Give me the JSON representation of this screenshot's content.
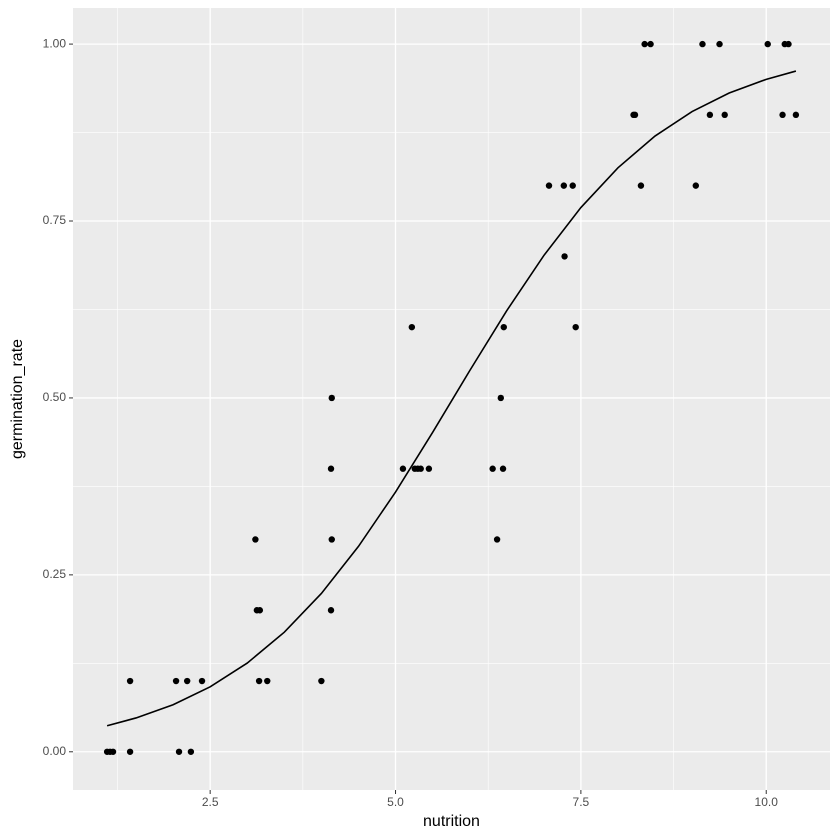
{
  "chart_data": {
    "type": "scatter",
    "x_label": "nutrition",
    "y_label": "germination_rate",
    "xlim": [
      0.65,
      10.86
    ],
    "ylim": [
      -0.054,
      1.051
    ],
    "xticks": [
      {
        "value": 2.5,
        "label": "2.5"
      },
      {
        "value": 5.0,
        "label": "5.0"
      },
      {
        "value": 7.5,
        "label": "7.5"
      },
      {
        "value": 10.0,
        "label": "10.0"
      }
    ],
    "yticks": [
      {
        "value": 0,
        "label": "0.00"
      },
      {
        "value": 0.25,
        "label": "0.25"
      },
      {
        "value": 0.5,
        "label": "0.50"
      },
      {
        "value": 0.75,
        "label": "0.75"
      },
      {
        "value": 1,
        "label": "1.00"
      }
    ],
    "grid": true,
    "series": [
      {
        "type": "scatter",
        "color": "#000000",
        "x": [
          1.11,
          1.15,
          1.19,
          1.42,
          1.42,
          2.04,
          2.08,
          2.19,
          2.24,
          2.39,
          3.11,
          3.13,
          3.17,
          3.16,
          3.27,
          4.0,
          4.13,
          4.14,
          4.14,
          4.13,
          5.1,
          5.22,
          5.26,
          5.3,
          5.34,
          5.45,
          6.31,
          6.37,
          6.42,
          6.45,
          6.46,
          7.07,
          7.27,
          7.28,
          7.39,
          7.43,
          8.21,
          8.23,
          8.31,
          8.36,
          8.44,
          9.05,
          9.14,
          9.24,
          9.37,
          9.44,
          10.02,
          10.22,
          10.25,
          10.3,
          10.4
        ],
        "values": [
          0,
          0,
          0,
          0.1,
          0,
          0.1,
          0,
          0.1,
          0,
          0.1,
          0.3,
          0.2,
          0.2,
          0.1,
          0.1,
          0.1,
          0.4,
          0.5,
          0.3,
          0.2,
          0.4,
          0.6,
          0.4,
          0.4,
          0.4,
          0.4,
          0.4,
          0.3,
          0.5,
          0.4,
          0.6,
          0.8,
          0.8,
          0.7,
          0.8,
          0.6,
          0.9,
          0.9,
          0.8,
          1,
          1,
          0.8,
          1,
          0.9,
          1,
          0.9,
          1,
          0.9,
          1,
          1,
          0.9
        ]
      },
      {
        "type": "line",
        "color": "#000000",
        "x": [
          1.11,
          1.5,
          2.0,
          2.5,
          3.0,
          3.5,
          4.0,
          4.5,
          5.0,
          5.5,
          6.0,
          6.5,
          7.0,
          7.5,
          8.0,
          8.5,
          9.0,
          9.5,
          10.0,
          10.4
        ],
        "values": [
          0.0368,
          0.0478,
          0.0665,
          0.0918,
          0.1253,
          0.169,
          0.2237,
          0.2902,
          0.367,
          0.4513,
          0.5384,
          0.6233,
          0.7012,
          0.769,
          0.8252,
          0.8701,
          0.9047,
          0.9309,
          0.9502,
          0.9619
        ]
      }
    ]
  }
}
